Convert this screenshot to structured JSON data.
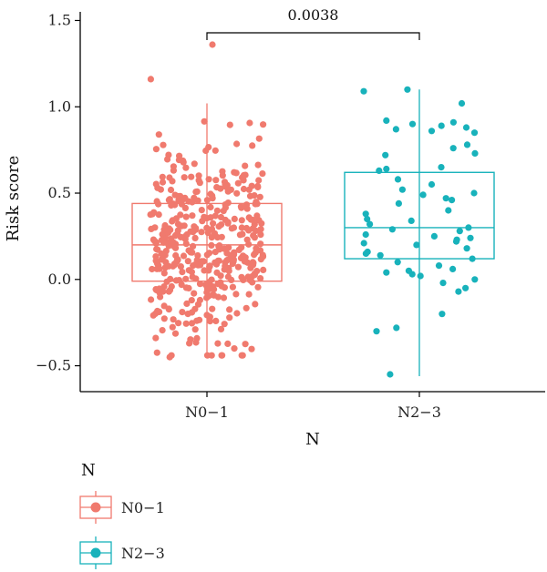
{
  "chart_data": {
    "type": "box",
    "ylabel": "Risk score",
    "xlabel": "N",
    "ylim": [
      -0.65,
      1.55
    ],
    "yticks": [
      -0.5,
      0.0,
      0.5,
      1.0,
      1.5
    ],
    "ytick_labels": [
      "−0.5",
      "0.0",
      "0.5",
      "1.0",
      "1.5"
    ],
    "categories": [
      "N0−1",
      "N2−3"
    ],
    "legend": {
      "title": "N",
      "placement": "bottom-left"
    },
    "annotation": {
      "text": "0.0038",
      "between": [
        "N0−1",
        "N2−3"
      ],
      "y": 1.43
    },
    "groups": [
      {
        "name": "N0−1",
        "color": "#F07A6E",
        "box": {
          "min": -0.43,
          "q1": -0.01,
          "median": 0.2,
          "q3": 0.44,
          "max": 1.02
        },
        "n_points": 420,
        "outliers": [
          1.36
        ],
        "jitter_extremes": [
          1.16,
          -0.45,
          -0.37
        ]
      },
      {
        "name": "N2−3",
        "color": "#18B2BB",
        "box": {
          "min": -0.56,
          "q1": 0.12,
          "median": 0.3,
          "q3": 0.62,
          "max": 1.1
        },
        "points": [
          1.1,
          1.09,
          1.02,
          0.92,
          0.91,
          0.9,
          0.89,
          0.88,
          0.87,
          0.86,
          0.85,
          0.78,
          0.76,
          0.73,
          0.72,
          0.65,
          0.64,
          0.63,
          0.58,
          0.55,
          0.52,
          0.5,
          0.49,
          0.47,
          0.46,
          0.44,
          0.4,
          0.38,
          0.35,
          0.34,
          0.32,
          0.3,
          0.29,
          0.28,
          0.26,
          0.25,
          0.24,
          0.23,
          0.22,
          0.21,
          0.2,
          0.18,
          0.16,
          0.15,
          0.14,
          0.12,
          0.1,
          0.08,
          0.06,
          0.05,
          0.04,
          0.03,
          0.02,
          0.0,
          -0.02,
          -0.05,
          -0.07,
          -0.2,
          -0.28,
          -0.3,
          -0.55
        ]
      }
    ]
  }
}
